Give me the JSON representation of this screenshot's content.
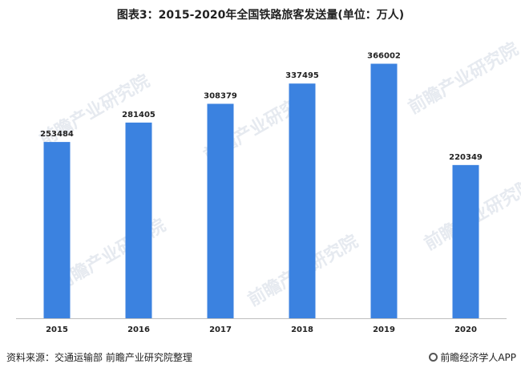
{
  "chart_data": {
    "type": "bar",
    "title": "图表3：2015-2020年全国铁路旅客发送量(单位：万人)",
    "categories": [
      "2015",
      "2016",
      "2017",
      "2018",
      "2019",
      "2020"
    ],
    "values": [
      253484,
      281405,
      308379,
      337495,
      366002,
      220349
    ],
    "ylim": [
      0,
      400000
    ],
    "grid": false,
    "legend": "none",
    "bar_color": "#3b82e0",
    "label_color": "#222222",
    "axis_color": "#bfbfbf"
  },
  "footer": {
    "source": "资料来源：交通运输部 前瞻产业研究院整理",
    "brand": "前瞻经济学人APP"
  },
  "watermark": {
    "text": "前瞻产业研究院"
  }
}
